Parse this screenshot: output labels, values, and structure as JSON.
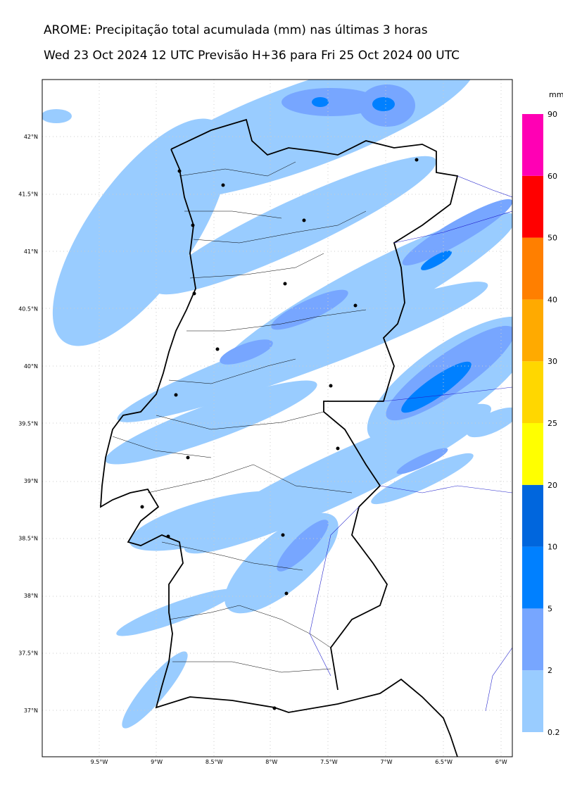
{
  "header": {
    "title": "AROME: Precipitação total acumulada (mm) nas últimas 3 horas",
    "subtitle": "Wed 23 Oct 2024 12 UTC Previsão H+36 para Fri 25 Oct 2024 00 UTC"
  },
  "map": {
    "lat_labels": [
      "42°N",
      "41.5°N",
      "41°N",
      "40.5°N",
      "40°N",
      "39.5°N",
      "39°N",
      "38.5°N",
      "38°N",
      "37.5°N",
      "37°N"
    ],
    "lon_labels": [
      "9.5°W",
      "9°W",
      "8.5°W",
      "8°W",
      "7.5°W",
      "7°W",
      "6.5°W",
      "6°W"
    ]
  },
  "colorbar": {
    "unit": "mm",
    "levels": [
      "0.2",
      "2",
      "5",
      "10",
      "20",
      "25",
      "30",
      "40",
      "50",
      "60",
      "90"
    ],
    "colors": [
      "#99ccff",
      "#77a6ff",
      "#0080ff",
      "#0066dd",
      "#ffff00",
      "#ffd700",
      "#ffaa00",
      "#ff7f00",
      "#ff0000",
      "#ff00b4"
    ]
  }
}
